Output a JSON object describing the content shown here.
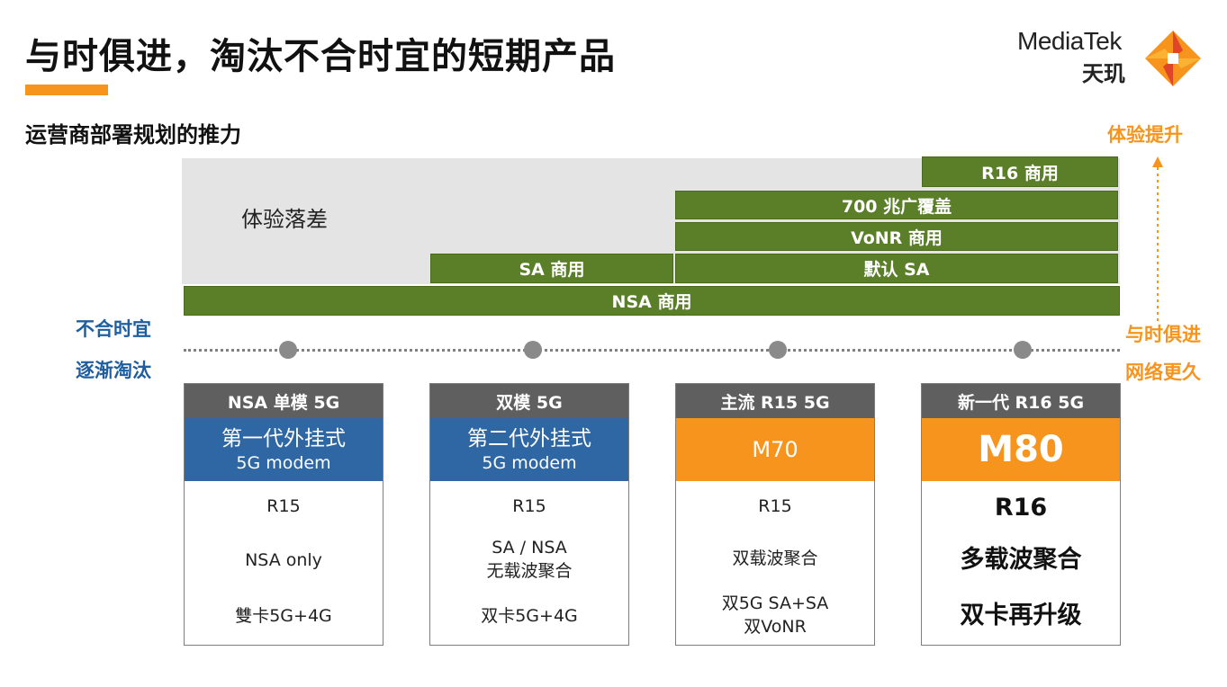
{
  "header": {
    "title": "与时俱进，淘汰不合时宜的短期产品",
    "subtitle": "运营商部署规划的推力"
  },
  "logo": {
    "name": "MediaTek",
    "cn": "天玑"
  },
  "side_labels": {
    "right_top": "体验提升",
    "right_mid1": "与时俱进",
    "right_mid2": "网络更久",
    "left1": "不合时宜",
    "left2": "逐渐淘汰"
  },
  "gap_label": "体验落差",
  "bars": {
    "r16": "R16 商用",
    "band700": "700 兆广覆盖",
    "vonr": "VoNR 商用",
    "sa": "SA 商用",
    "default_sa": "默认 SA",
    "nsa": "NSA 商用"
  },
  "cards": [
    {
      "header": "NSA 单模 5G",
      "chip_line1": "第一代外挂式",
      "chip_line2": "5G modem",
      "specs": [
        "R15",
        "NSA only",
        "雙卡5G+4G"
      ]
    },
    {
      "header": "双模 5G",
      "chip_line1": "第二代外挂式",
      "chip_line2": "5G modem",
      "specs": [
        "R15",
        "SA / NSA",
        "无载波聚合",
        "双卡5G+4G"
      ]
    },
    {
      "header": "主流 R15 5G",
      "chip": "M70",
      "specs": [
        "R15",
        "双载波聚合",
        "双5G SA+SA",
        "双VoNR"
      ]
    },
    {
      "header": "新一代 R16 5G",
      "chip": "M80",
      "specs": [
        "R16",
        "多载波聚合",
        "双卡再升级"
      ]
    }
  ],
  "colors": {
    "accent": "#f7941d",
    "bar_green": "#5a7f28",
    "chip_blue": "#2e67a4",
    "header_gray": "#5f5f5f",
    "label_blue": "#1f5fa0"
  }
}
